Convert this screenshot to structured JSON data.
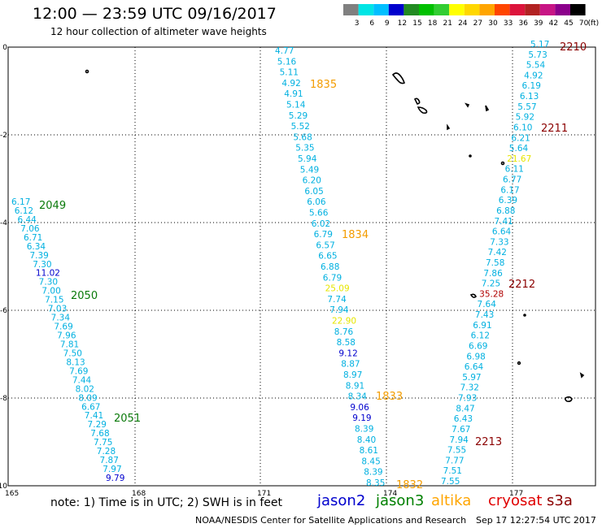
{
  "header": {
    "title": "12:00 — 23:59 UTC 09/16/2017",
    "subtitle": "12 hour collection of altimeter wave heights"
  },
  "color_scale": {
    "ticks": [
      "3",
      "6",
      "9",
      "12",
      "15",
      "18",
      "21",
      "24",
      "27",
      "30",
      "33",
      "36",
      "39",
      "42",
      "45",
      "70"
    ],
    "unit": "(ft)",
    "colors": [
      "#808080",
      "#00e5e5",
      "#00bfff",
      "#0000cd",
      "#228b22",
      "#00c000",
      "#32cd32",
      "#ffff00",
      "#ffd700",
      "#ffa500",
      "#ff4500",
      "#dc143c",
      "#b22222",
      "#c71585",
      "#8b008b",
      "#000000"
    ]
  },
  "map_labels": {
    "x_ticks": [
      "165",
      "168",
      "171",
      "174",
      "177"
    ],
    "y_ticks": [
      "0",
      "-2",
      "-4",
      "-6",
      "-8",
      "-10"
    ]
  },
  "footer": {
    "note": "note:  1) Time is in UTC;  2) SWH is in feet",
    "credit": "NOAA/NESDIS Center for Satellite Applications and Research",
    "stamp": "Sep 17 12:27:54 UTC 2017"
  },
  "satellites": [
    {
      "name": "jason2",
      "color": "#0000cd"
    },
    {
      "name": "jason3",
      "color": "#008000"
    },
    {
      "name": "altika",
      "color": "#ffa500"
    },
    {
      "name": "cryosat",
      "color": "#e00000"
    },
    {
      "name": "s3a",
      "color": "#8b0000"
    }
  ],
  "tracks": [
    {
      "id": "left-track",
      "pass_labels": [
        {
          "text": "2049",
          "color": "#0a7a0a"
        },
        {
          "text": "2050",
          "color": "#0a7a0a"
        },
        {
          "text": "2051",
          "color": "#0a7a0a"
        }
      ],
      "values": [
        "6.17",
        "6.12",
        "6.44",
        "7.06",
        "6.71",
        "6.34",
        "7.39",
        "7.30",
        "11.02",
        "7.30",
        "7.00",
        "7.15",
        "7.03",
        "7.34",
        "7.69",
        "7.96",
        "7.81",
        "7.50",
        "8.13",
        "7.69",
        "7.44",
        "8.02",
        "8.09",
        "6.67",
        "7.41",
        "7.29",
        "7.68",
        "7.75",
        "7.28",
        "7.87",
        "7.97",
        "9.79"
      ]
    },
    {
      "id": "middle-track",
      "pass_labels": [
        {
          "text": "1835",
          "color": "#f39c00"
        },
        {
          "text": "1834",
          "color": "#f39c00"
        },
        {
          "text": "1833",
          "color": "#f39c00"
        },
        {
          "text": "1832",
          "color": "#f39c00"
        }
      ],
      "values": [
        "4.77",
        "5.16",
        "5.11",
        "4.92",
        "4.91",
        "5.14",
        "5.29",
        "5.52",
        "5.68",
        "5.35",
        "5.94",
        "5.49",
        "6.20",
        "6.05",
        "6.06",
        "5.66",
        "6.02",
        "6.79",
        "6.57",
        "6.65",
        "6.88",
        "6.79",
        "25.09",
        "7.74",
        "7.94",
        "22.90",
        "8.76",
        "8.58",
        "9.12",
        "8.87",
        "8.97",
        "8.91",
        "8.34",
        "9.06",
        "9.19",
        "8.39",
        "8.40",
        "8.61",
        "8.45",
        "8.39",
        "8.35"
      ]
    },
    {
      "id": "right-track",
      "pass_labels": [
        {
          "text": "2210",
          "color": "#8b0000"
        },
        {
          "text": "2211",
          "color": "#8b0000"
        },
        {
          "text": "2212",
          "color": "#8b0000"
        },
        {
          "text": "2213",
          "color": "#8b0000"
        }
      ],
      "values": [
        "5.17",
        "5.73",
        "5.54",
        "4.92",
        "6.19",
        "6.13",
        "5.57",
        "5.92",
        "6.10",
        "6.21",
        "5.64",
        "21.67",
        "6.11",
        "6.77",
        "6.17",
        "6.39",
        "6.88",
        "7.41",
        "6.64",
        "7.33",
        "7.42",
        "7.58",
        "7.86",
        "7.25",
        "35.28",
        "7.64",
        "7.43",
        "6.91",
        "6.12",
        "6.69",
        "6.98",
        "6.64",
        "5.97",
        "7.32",
        "7.93",
        "8.47",
        "6.43",
        "7.67",
        "7.94",
        "7.55",
        "7.77",
        "7.51",
        "7.55"
      ]
    }
  ]
}
